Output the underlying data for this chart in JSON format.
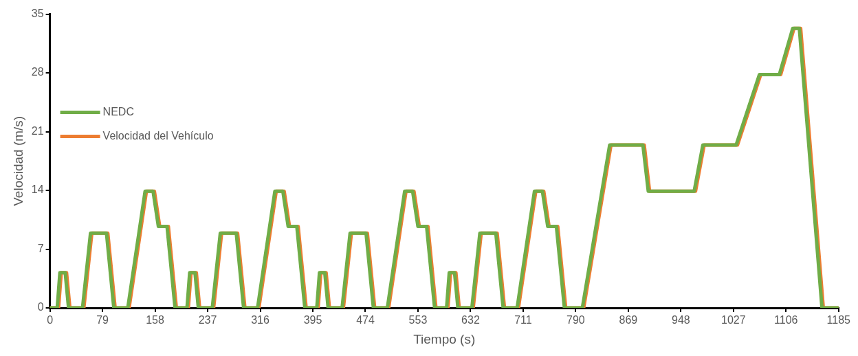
{
  "chart_data": {
    "type": "line",
    "xlabel": "Tiempo (s)",
    "ylabel": "Velocidad (m/s)",
    "xlim": [
      0,
      1185
    ],
    "xticks": [
      0,
      79,
      158,
      237,
      316,
      395,
      474,
      553,
      632,
      711,
      790,
      869,
      948,
      1027,
      1106,
      1185
    ],
    "ylim": [
      0,
      35
    ],
    "yticks": [
      0,
      7,
      14,
      21,
      28,
      35
    ],
    "grid": false,
    "legend": "left",
    "marker": "none",
    "line_style": "solid",
    "series": [
      {
        "name": "NEDC",
        "color": "#70ad47",
        "x": [
          0,
          11,
          15,
          23,
          28,
          49,
          61,
          85,
          96,
          117,
          143,
          155,
          163,
          176,
          188,
          195,
          206,
          210,
          218,
          223,
          244,
          256,
          280,
          291,
          312,
          338,
          350,
          358,
          371,
          383,
          390,
          401,
          405,
          413,
          418,
          439,
          451,
          475,
          486,
          507,
          533,
          545,
          553,
          566,
          578,
          585,
          596,
          600,
          608,
          613,
          634,
          646,
          670,
          681,
          702,
          728,
          740,
          748,
          761,
          773,
          780,
          800,
          841,
          891,
          899,
          968,
          981,
          1031,
          1066,
          1096,
          1116,
          1126,
          1160,
          1185
        ],
        "values": [
          0,
          0,
          4.2,
          4.2,
          0,
          0,
          8.9,
          8.9,
          0,
          0,
          13.9,
          13.9,
          9.7,
          9.7,
          0,
          0,
          0,
          4.2,
          4.2,
          0,
          0,
          8.9,
          8.9,
          0,
          0,
          13.9,
          13.9,
          9.7,
          9.7,
          0,
          0,
          0,
          4.2,
          4.2,
          0,
          0,
          8.9,
          8.9,
          0,
          0,
          13.9,
          13.9,
          9.7,
          9.7,
          0,
          0,
          0,
          4.2,
          4.2,
          0,
          0,
          8.9,
          8.9,
          0,
          0,
          13.9,
          13.9,
          9.7,
          9.7,
          0,
          0,
          0,
          19.4,
          19.4,
          13.9,
          13.9,
          19.4,
          19.4,
          27.8,
          27.8,
          33.3,
          33.3,
          0,
          0
        ]
      },
      {
        "name": "Velocidad del Vehículo",
        "color": "#ed7d31",
        "x": [
          0,
          13,
          17,
          25,
          30,
          51,
          63,
          87,
          98,
          119,
          145,
          157,
          165,
          178,
          190,
          197,
          208,
          212,
          220,
          225,
          246,
          258,
          282,
          293,
          314,
          340,
          352,
          360,
          373,
          385,
          392,
          403,
          407,
          415,
          420,
          441,
          453,
          477,
          488,
          509,
          535,
          547,
          555,
          568,
          580,
          587,
          598,
          602,
          610,
          615,
          636,
          648,
          672,
          683,
          704,
          730,
          742,
          750,
          763,
          775,
          782,
          802,
          843,
          893,
          901,
          970,
          983,
          1033,
          1068,
          1098,
          1118,
          1128,
          1162,
          1185
        ],
        "values": [
          0,
          0,
          4.2,
          4.2,
          0,
          0,
          8.9,
          8.9,
          0,
          0,
          13.9,
          13.9,
          9.7,
          9.7,
          0,
          0,
          0,
          4.2,
          4.2,
          0,
          0,
          8.9,
          8.9,
          0,
          0,
          13.9,
          13.9,
          9.7,
          9.7,
          0,
          0,
          0,
          4.2,
          4.2,
          0,
          0,
          8.9,
          8.9,
          0,
          0,
          13.9,
          13.9,
          9.7,
          9.7,
          0,
          0,
          0,
          4.2,
          4.2,
          0,
          0,
          8.9,
          8.9,
          0,
          0,
          13.9,
          13.9,
          9.7,
          9.7,
          0,
          0,
          0,
          19.4,
          19.4,
          13.9,
          13.9,
          19.4,
          19.4,
          27.8,
          27.8,
          33.3,
          33.3,
          0,
          0
        ]
      }
    ]
  }
}
